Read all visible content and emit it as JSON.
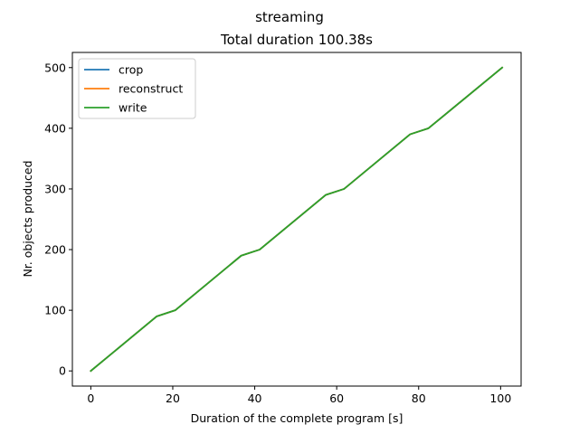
{
  "chart_data": {
    "type": "line",
    "suptitle": "streaming",
    "title": "Total duration 100.38s",
    "xlabel": "Duration of the complete program [s]",
    "ylabel": "Nr. objects produced",
    "xlim": [
      -4.5,
      105
    ],
    "ylim": [
      -25,
      525
    ],
    "xticks": [
      0,
      20,
      40,
      60,
      80,
      100
    ],
    "yticks": [
      0,
      100,
      200,
      300,
      400,
      500
    ],
    "grid": false,
    "legend_position": "upper-left",
    "series": [
      {
        "name": "crop",
        "color": "#1f77b4",
        "x": [
          0,
          16.1,
          20.6,
          36.7,
          41.2,
          57.3,
          61.8,
          77.9,
          82.4,
          100.38
        ],
        "y": [
          0,
          90,
          100,
          190,
          200,
          290,
          300,
          390,
          400,
          500
        ]
      },
      {
        "name": "reconstruct",
        "color": "#ff7f0e",
        "x": [
          0,
          16.1,
          20.6,
          36.7,
          41.2,
          57.3,
          61.8,
          77.9,
          82.4,
          100.38
        ],
        "y": [
          0,
          90,
          100,
          190,
          200,
          290,
          300,
          390,
          400,
          500
        ]
      },
      {
        "name": "write",
        "color": "#2ca02c",
        "x": [
          0,
          16.1,
          20.6,
          36.7,
          41.2,
          57.3,
          61.8,
          77.9,
          82.4,
          100.38
        ],
        "y": [
          0,
          90,
          100,
          190,
          200,
          290,
          300,
          390,
          400,
          500
        ]
      }
    ]
  }
}
